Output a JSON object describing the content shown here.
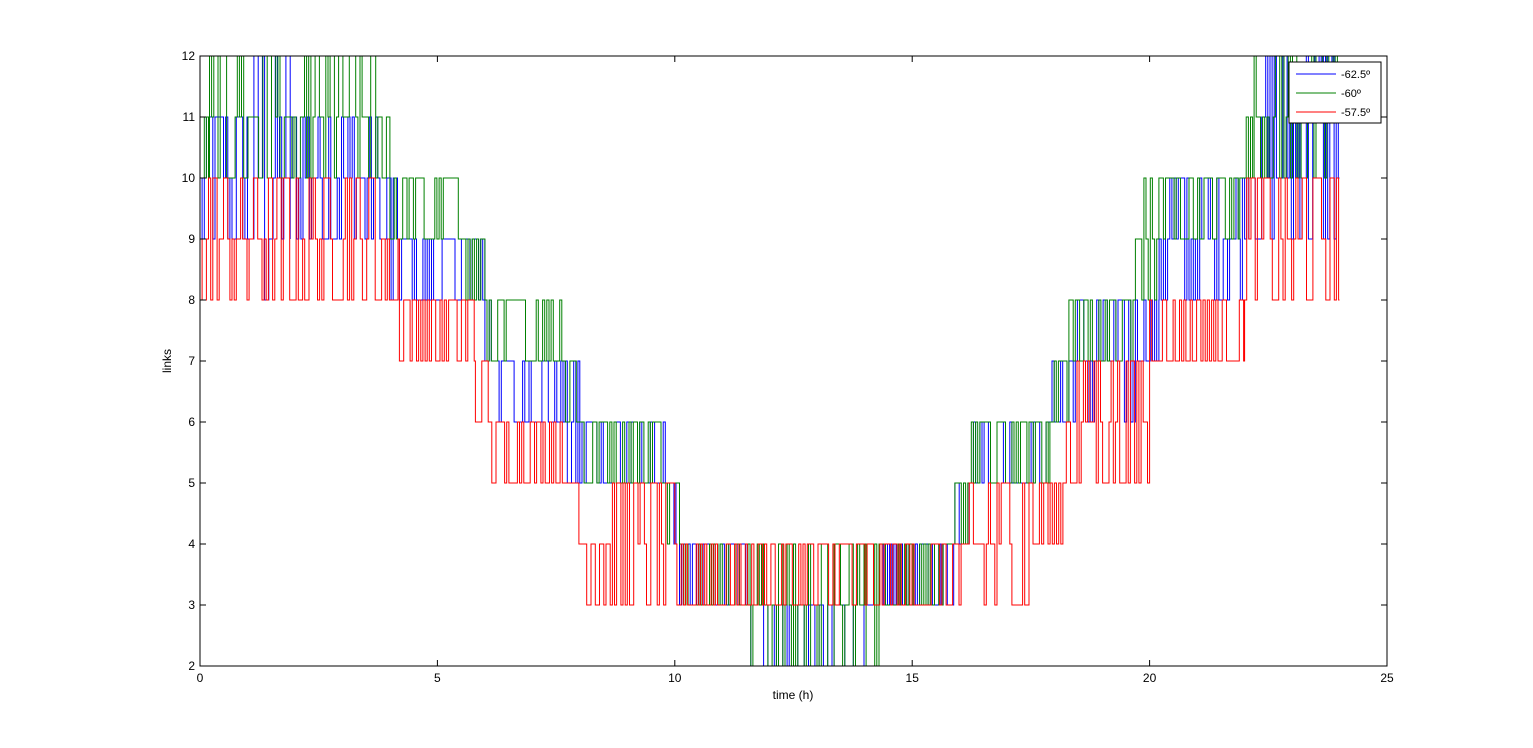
{
  "chart_data": {
    "type": "line",
    "title": "",
    "xlabel": "time (h)",
    "ylabel": "links",
    "xlim": [
      0,
      25
    ],
    "ylim": [
      2,
      12
    ],
    "xticks": [
      0,
      5,
      10,
      15,
      20,
      25
    ],
    "yticks": [
      2,
      3,
      4,
      5,
      6,
      7,
      8,
      9,
      10,
      11,
      12
    ],
    "grid": false,
    "legend_position": "top-right",
    "series": [
      {
        "name": "-62.5º",
        "color": "#0000ff",
        "segments": [
          {
            "t": [
              0.0,
              1.0
            ],
            "levels": [
              9,
              10,
              11
            ]
          },
          {
            "t": [
              1.0,
              1.9
            ],
            "levels": [
              8,
              9,
              10,
              11,
              12
            ]
          },
          {
            "t": [
              1.9,
              3.8
            ],
            "levels": [
              9,
              10,
              11
            ]
          },
          {
            "t": [
              3.8,
              4.2
            ],
            "levels": [
              8,
              9,
              10
            ]
          },
          {
            "t": [
              4.2,
              6.0
            ],
            "levels": [
              8,
              9
            ]
          },
          {
            "t": [
              6.0,
              6.3
            ],
            "levels": [
              7,
              8
            ]
          },
          {
            "t": [
              6.3,
              7.6
            ],
            "levels": [
              6,
              7
            ]
          },
          {
            "t": [
              7.6,
              8.0
            ],
            "levels": [
              5,
              6,
              7
            ]
          },
          {
            "t": [
              8.0,
              9.8
            ],
            "levels": [
              5,
              6
            ]
          },
          {
            "t": [
              9.8,
              10.1
            ],
            "levels": [
              4,
              5
            ]
          },
          {
            "t": [
              10.1,
              11.6
            ],
            "levels": [
              3,
              4
            ]
          },
          {
            "t": [
              11.6,
              14.3
            ],
            "levels": [
              2,
              3
            ]
          },
          {
            "t": [
              14.3,
              15.9
            ],
            "levels": [
              3,
              4
            ]
          },
          {
            "t": [
              15.9,
              16.2
            ],
            "levels": [
              4,
              5
            ]
          },
          {
            "t": [
              16.2,
              17.9
            ],
            "levels": [
              5,
              6
            ]
          },
          {
            "t": [
              17.9,
              18.3
            ],
            "levels": [
              6,
              7
            ]
          },
          {
            "t": [
              18.3,
              19.7
            ],
            "levels": [
              6,
              7,
              8
            ]
          },
          {
            "t": [
              19.7,
              20.2
            ],
            "levels": [
              7,
              8
            ]
          },
          {
            "t": [
              20.2,
              22.0
            ],
            "levels": [
              8,
              9,
              10
            ]
          },
          {
            "t": [
              22.0,
              22.4
            ],
            "levels": [
              9,
              10,
              11
            ]
          },
          {
            "t": [
              22.4,
              24.0
            ],
            "levels": [
              9,
              10,
              11,
              12
            ]
          }
        ]
      },
      {
        "name": "-60º",
        "color": "#008000",
        "segments": [
          {
            "t": [
              0.0,
              0.2
            ],
            "levels": [
              10,
              11
            ]
          },
          {
            "t": [
              0.2,
              1.8
            ],
            "levels": [
              10,
              11,
              12
            ]
          },
          {
            "t": [
              1.8,
              2.2
            ],
            "levels": [
              10,
              11
            ]
          },
          {
            "t": [
              2.2,
              3.7
            ],
            "levels": [
              10,
              11,
              12
            ]
          },
          {
            "t": [
              3.7,
              4.0
            ],
            "levels": [
              10,
              11
            ]
          },
          {
            "t": [
              4.0,
              5.6
            ],
            "levels": [
              9,
              10
            ]
          },
          {
            "t": [
              5.6,
              6.0
            ],
            "levels": [
              8,
              9
            ]
          },
          {
            "t": [
              6.0,
              7.7
            ],
            "levels": [
              7,
              8
            ]
          },
          {
            "t": [
              7.7,
              8.0
            ],
            "levels": [
              6,
              7
            ]
          },
          {
            "t": [
              8.0,
              9.8
            ],
            "levels": [
              5,
              6
            ]
          },
          {
            "t": [
              9.8,
              10.1
            ],
            "levels": [
              4,
              5
            ]
          },
          {
            "t": [
              10.1,
              11.6
            ],
            "levels": [
              3,
              4
            ]
          },
          {
            "t": [
              11.6,
              14.3
            ],
            "levels": [
              2,
              3,
              4
            ]
          },
          {
            "t": [
              14.3,
              15.9
            ],
            "levels": [
              3,
              4
            ]
          },
          {
            "t": [
              15.9,
              16.2
            ],
            "levels": [
              4,
              5
            ]
          },
          {
            "t": [
              16.2,
              17.9
            ],
            "levels": [
              5,
              6
            ]
          },
          {
            "t": [
              17.9,
              18.3
            ],
            "levels": [
              6,
              7
            ]
          },
          {
            "t": [
              18.3,
              19.7
            ],
            "levels": [
              7,
              8
            ]
          },
          {
            "t": [
              19.7,
              20.2
            ],
            "levels": [
              8,
              9,
              10
            ]
          },
          {
            "t": [
              20.2,
              21.9
            ],
            "levels": [
              9,
              10
            ]
          },
          {
            "t": [
              21.9,
              22.2
            ],
            "levels": [
              10,
              11
            ]
          },
          {
            "t": [
              22.2,
              24.0
            ],
            "levels": [
              10,
              11,
              12
            ]
          }
        ]
      },
      {
        "name": "-57.5º",
        "color": "#ff0000",
        "segments": [
          {
            "t": [
              0.0,
              3.9
            ],
            "levels": [
              8,
              9,
              10
            ]
          },
          {
            "t": [
              3.9,
              4.2
            ],
            "levels": [
              8,
              9
            ]
          },
          {
            "t": [
              4.2,
              5.8
            ],
            "levels": [
              7,
              8
            ]
          },
          {
            "t": [
              5.8,
              6.1
            ],
            "levels": [
              6,
              7
            ]
          },
          {
            "t": [
              6.1,
              7.8
            ],
            "levels": [
              5,
              6
            ]
          },
          {
            "t": [
              7.8,
              8.1
            ],
            "levels": [
              4,
              5
            ]
          },
          {
            "t": [
              8.1,
              10.0
            ],
            "levels": [
              3,
              4,
              5
            ]
          },
          {
            "t": [
              10.0,
              16.2
            ],
            "levels": [
              3,
              4
            ]
          },
          {
            "t": [
              16.2,
              17.5
            ],
            "levels": [
              3,
              4,
              5
            ]
          },
          {
            "t": [
              17.5,
              18.2
            ],
            "levels": [
              4,
              5
            ]
          },
          {
            "t": [
              18.2,
              20.0
            ],
            "levels": [
              5,
              6,
              7
            ]
          },
          {
            "t": [
              20.0,
              22.0
            ],
            "levels": [
              7,
              8
            ]
          },
          {
            "t": [
              22.0,
              24.0
            ],
            "levels": [
              8,
              9,
              10
            ]
          }
        ]
      }
    ]
  }
}
